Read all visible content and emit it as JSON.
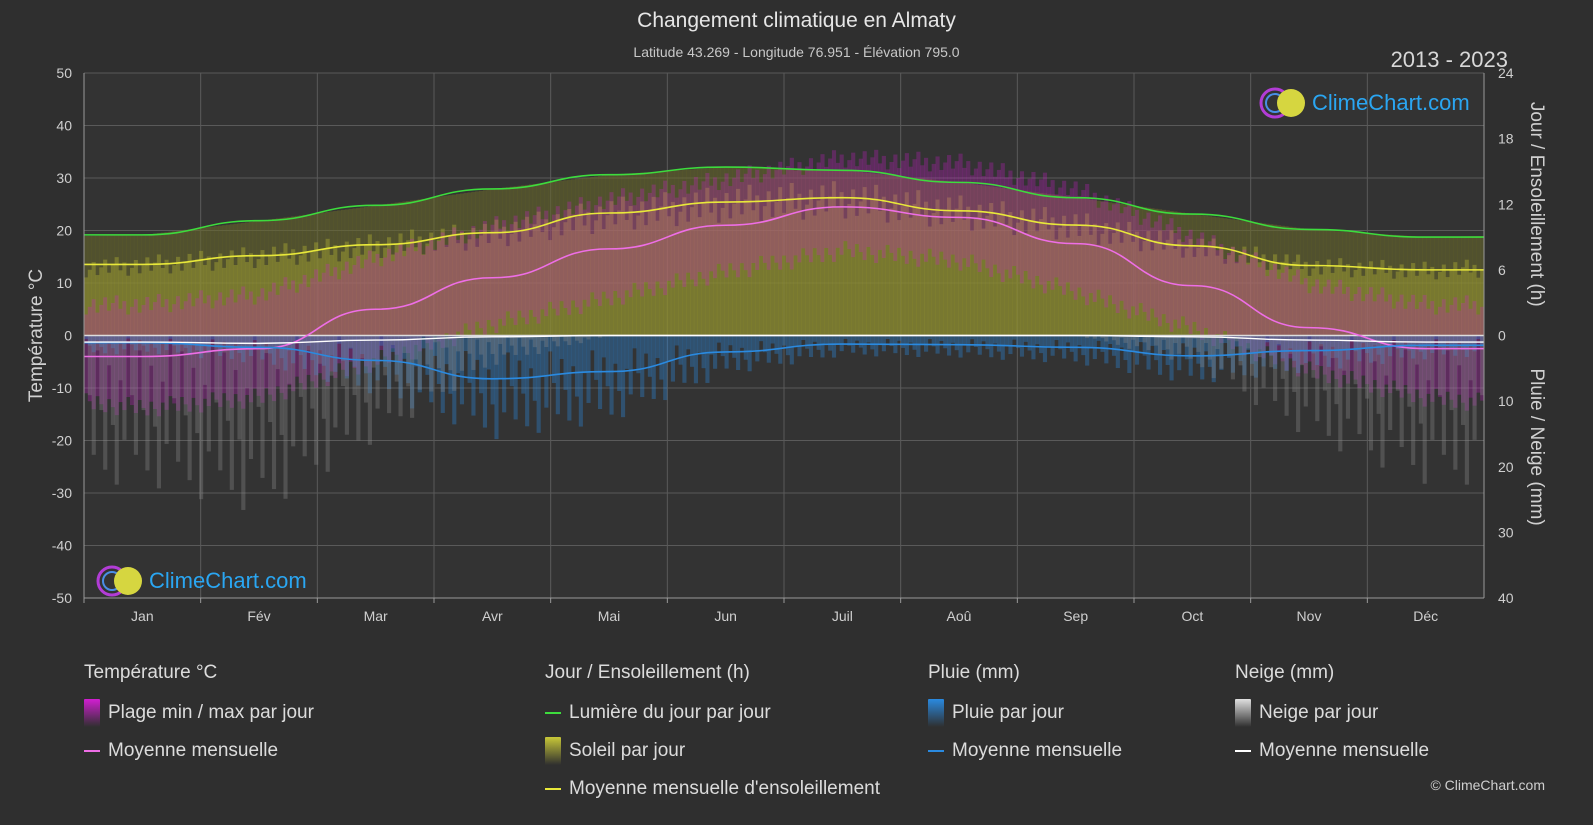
{
  "header": {
    "title": "Changement climatique en Almaty",
    "subtitle": "Latitude 43.269 - Longitude 76.951 - Élévation 795.0",
    "years": "2013 - 2023"
  },
  "brand": {
    "text": "ClimeChart.com",
    "copyright": "© ClimeChart.com"
  },
  "colors": {
    "background": "#2f2f2f",
    "grid": "#5a5a5a",
    "daylight": "#3ddc3d",
    "sunshine": "#e8e83a",
    "temp_mean": "#ee6ee6",
    "temp_range": "#d21ed2",
    "rain": "#2a8ae0",
    "snow": "#ffffff",
    "brand": "#2aa6f2"
  },
  "chart_data": {
    "type": "line",
    "categories": [
      "Jan",
      "Fév",
      "Mar",
      "Avr",
      "Mai",
      "Jun",
      "Juil",
      "Aoû",
      "Sep",
      "Oct",
      "Nov",
      "Déc"
    ],
    "left_axis": {
      "label": "Température °C",
      "min": -50,
      "max": 50,
      "ticks": [
        50,
        40,
        30,
        20,
        10,
        0,
        -10,
        -20,
        -30,
        -40,
        -50
      ]
    },
    "right_axis_top": {
      "label": "Jour / Ensoleillement (h)",
      "min": 0,
      "max": 24,
      "ticks": [
        24,
        18,
        12,
        6,
        0
      ]
    },
    "right_axis_bottom": {
      "label": "Pluie / Neige (mm)",
      "min": 0,
      "max": 40,
      "ticks": [
        0,
        10,
        20,
        30,
        40
      ]
    },
    "grid": true,
    "series": [
      {
        "name": "Lumière du jour par jour",
        "axis": "hours",
        "values": [
          9.2,
          10.5,
          11.9,
          13.4,
          14.7,
          15.4,
          15.1,
          14.0,
          12.6,
          11.1,
          9.7,
          9.0
        ]
      },
      {
        "name": "Moyenne mensuelle d'ensoleillement",
        "axis": "hours",
        "values": [
          6.5,
          7.3,
          8.3,
          9.4,
          11.2,
          12.2,
          12.6,
          11.4,
          10.1,
          8.2,
          6.4,
          6.0
        ]
      },
      {
        "name": "Moyenne mensuelle",
        "group": "Température °C",
        "axis": "temp",
        "values": [
          -4.0,
          -2.5,
          5.0,
          11.0,
          16.5,
          21.0,
          24.5,
          22.5,
          17.5,
          9.5,
          1.5,
          -2.5
        ]
      },
      {
        "name": "Moyenne mensuelle",
        "group": "Pluie (mm)",
        "axis": "precip",
        "values": [
          1.1,
          1.8,
          3.8,
          6.6,
          5.5,
          2.5,
          1.3,
          1.4,
          1.8,
          3.1,
          2.3,
          1.5
        ]
      },
      {
        "name": "Moyenne mensuelle",
        "group": "Neige (mm)",
        "axis": "precip",
        "values": [
          1.0,
          1.2,
          0.7,
          0.2,
          0.0,
          0.0,
          0.0,
          0.0,
          0.0,
          0.2,
          0.7,
          1.0
        ]
      }
    ],
    "temp_range_daily": {
      "min": [
        -12,
        -10,
        -3,
        4,
        9,
        14,
        18,
        16,
        10,
        3,
        -5,
        -10
      ],
      "max": [
        4,
        6,
        13,
        19,
        24,
        28,
        32,
        31,
        26,
        17,
        8,
        4
      ]
    }
  },
  "legend": {
    "groups": [
      {
        "title": "Température °C",
        "items": [
          {
            "label": "Plage min / max par jour",
            "kind": "box",
            "color": "#d21ed2"
          },
          {
            "label": "Moyenne mensuelle",
            "kind": "line",
            "color": "#ee6ee6"
          }
        ]
      },
      {
        "title": "Jour / Ensoleillement (h)",
        "items": [
          {
            "label": "Lumière du jour par jour",
            "kind": "line",
            "color": "#3ddc3d"
          },
          {
            "label": "Soleil par jour",
            "kind": "box",
            "color": "#c8c838"
          },
          {
            "label": "Moyenne mensuelle d'ensoleillement",
            "kind": "line",
            "color": "#e8e83a"
          }
        ]
      },
      {
        "title": "Pluie (mm)",
        "items": [
          {
            "label": "Pluie par jour",
            "kind": "box",
            "color": "#2a8ae0"
          },
          {
            "label": "Moyenne mensuelle",
            "kind": "line",
            "color": "#2a8ae0"
          }
        ]
      },
      {
        "title": "Neige (mm)",
        "items": [
          {
            "label": "Neige par jour",
            "kind": "box",
            "color": "#e0e0e0"
          },
          {
            "label": "Moyenne mensuelle",
            "kind": "line",
            "color": "#ffffff"
          }
        ]
      }
    ]
  }
}
